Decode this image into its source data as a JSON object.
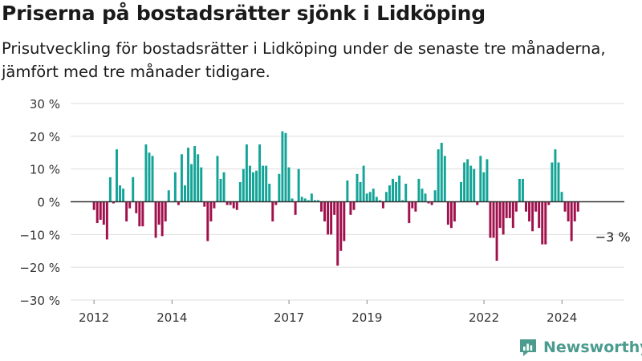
{
  "title": "Priserna på bostadsrätter sjönk i Lidköping",
  "subtitle": "Prisutveckling för bostadsrätter i Lidköping under de senaste tre månaderna, jämfört med tre månader tidigare.",
  "brand": "Newsworthy",
  "colors": {
    "positive": "#13a497",
    "negative": "#a0104c",
    "grid": "#dedede",
    "axis": "#333333"
  },
  "chart_data": {
    "type": "bar",
    "ylim": [
      -30,
      30
    ],
    "yticks": [
      30,
      20,
      10,
      0,
      -10,
      -20,
      -30
    ],
    "ytick_suffix": " %",
    "xlim": [
      2011.4,
      2025.6
    ],
    "xticks": [
      2012,
      2014,
      2017,
      2019,
      2022,
      2024
    ],
    "annotation": {
      "text": "−3 %",
      "x": 2024.75,
      "y": -3
    },
    "x_start": 2012.0,
    "x_step": 0.0833,
    "values": [
      -2.5,
      -6.5,
      -5.5,
      -7,
      -11.5,
      7.5,
      -0.5,
      16,
      5,
      4,
      -6,
      -2,
      7.5,
      -3.5,
      -7.5,
      -7.5,
      17.5,
      15,
      14,
      -11,
      -7,
      -10.5,
      -6,
      3.5,
      0,
      9,
      -1,
      14.5,
      5,
      16.5,
      11.5,
      17,
      14.5,
      10.5,
      -1.5,
      -12,
      -6,
      -2,
      14,
      7,
      9,
      -1,
      -1,
      -2,
      -2.5,
      6,
      10,
      17.5,
      11,
      9,
      9.5,
      17.5,
      11,
      11,
      5.5,
      -6,
      -1,
      8.5,
      21.5,
      21,
      10.5,
      1,
      -4,
      10,
      1.5,
      1,
      0.5,
      2.5,
      0.5,
      0.5,
      -3,
      -6,
      -10,
      -10,
      -4,
      -19.5,
      -15,
      -12,
      6.5,
      -4,
      -2.5,
      8.5,
      6,
      11,
      2.5,
      3,
      4,
      1.5,
      0.5,
      -2,
      3,
      5,
      7,
      6,
      8,
      0.5,
      5.5,
      -6.5,
      -2,
      -3,
      7,
      4,
      2.5,
      -0.5,
      -1,
      3.5,
      16,
      18,
      14,
      -7,
      -8,
      -6,
      0,
      6,
      12,
      13,
      11,
      10,
      -1,
      14,
      9,
      13,
      -11,
      -11,
      -18,
      -8,
      -10,
      -5,
      -5,
      -8,
      -3,
      7,
      7,
      -3,
      -6,
      -9,
      -3,
      -8,
      -13,
      -13,
      -1,
      12,
      16,
      12,
      3,
      -3,
      -6,
      -12,
      -6,
      -3
    ]
  }
}
